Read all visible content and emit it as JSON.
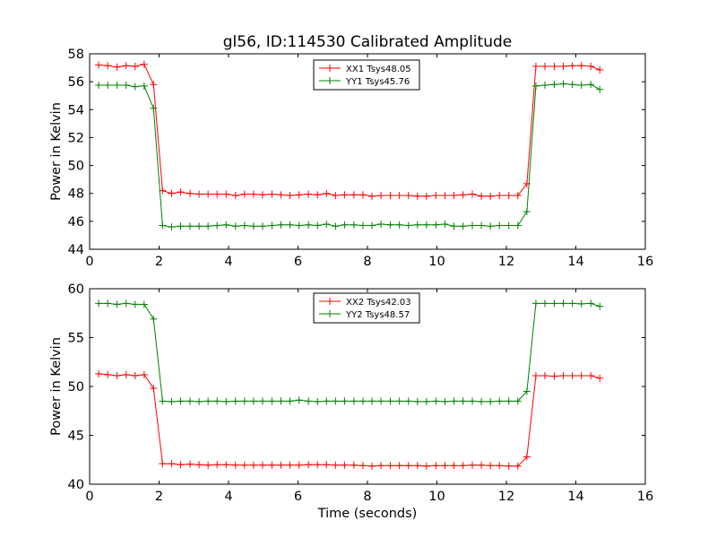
{
  "figure": {
    "title": "gl56, ID:114530 Calibrated Amplitude",
    "xlabel": "Time (seconds)"
  },
  "colors": {
    "red": "#ff0000",
    "green": "#008000"
  },
  "chart_data": [
    {
      "type": "line",
      "ylabel": "Power in Kelvin",
      "xlim": [
        0,
        16
      ],
      "ylim": [
        44,
        58
      ],
      "xticks": [
        0,
        2,
        4,
        6,
        8,
        10,
        12,
        14,
        16
      ],
      "yticks": [
        44,
        46,
        48,
        50,
        52,
        54,
        56,
        58
      ],
      "grid": false,
      "legend_placement": "upper-center",
      "marker": "+",
      "series": [
        {
          "name": "XX1 Tsys48.05",
          "color": "#ff0000",
          "x": [
            0.26,
            0.52,
            0.79,
            1.05,
            1.31,
            1.57,
            1.84,
            2.1,
            2.36,
            2.62,
            2.89,
            3.15,
            3.41,
            3.67,
            3.93,
            4.2,
            4.46,
            4.72,
            4.98,
            5.25,
            5.51,
            5.77,
            6.03,
            6.3,
            6.56,
            6.82,
            7.08,
            7.34,
            7.61,
            7.87,
            8.13,
            8.39,
            8.66,
            8.92,
            9.18,
            9.44,
            9.7,
            9.97,
            10.23,
            10.49,
            10.75,
            11.02,
            11.28,
            11.54,
            11.8,
            12.07,
            12.33,
            12.59,
            12.85,
            13.11,
            13.38,
            13.64,
            13.9,
            14.16,
            14.43,
            14.69
          ],
          "y": [
            57.2,
            57.15,
            57.05,
            57.15,
            57.1,
            57.25,
            55.8,
            48.2,
            48.0,
            48.1,
            48.0,
            47.95,
            47.95,
            47.95,
            47.95,
            47.85,
            47.95,
            47.95,
            47.9,
            47.95,
            47.9,
            47.85,
            47.9,
            47.95,
            47.9,
            48.0,
            47.85,
            47.9,
            47.9,
            47.9,
            47.8,
            47.85,
            47.85,
            47.85,
            47.85,
            47.8,
            47.8,
            47.85,
            47.85,
            47.85,
            47.9,
            47.95,
            47.8,
            47.8,
            47.85,
            47.85,
            47.85,
            48.7,
            57.1,
            57.1,
            57.1,
            57.1,
            57.15,
            57.15,
            57.1,
            56.85
          ]
        },
        {
          "name": "YY1 Tsys45.76",
          "color": "#008000",
          "x": [
            0.26,
            0.52,
            0.79,
            1.05,
            1.31,
            1.57,
            1.84,
            2.1,
            2.36,
            2.62,
            2.89,
            3.15,
            3.41,
            3.67,
            3.93,
            4.2,
            4.46,
            4.72,
            4.98,
            5.25,
            5.51,
            5.77,
            6.03,
            6.3,
            6.56,
            6.82,
            7.08,
            7.34,
            7.61,
            7.87,
            8.13,
            8.39,
            8.66,
            8.92,
            9.18,
            9.44,
            9.7,
            9.97,
            10.23,
            10.49,
            10.75,
            11.02,
            11.28,
            11.54,
            11.8,
            12.07,
            12.33,
            12.59,
            12.85,
            13.11,
            13.38,
            13.64,
            13.9,
            14.16,
            14.43,
            14.69
          ],
          "y": [
            55.75,
            55.75,
            55.75,
            55.75,
            55.65,
            55.7,
            54.1,
            45.7,
            45.6,
            45.65,
            45.65,
            45.65,
            45.65,
            45.7,
            45.75,
            45.65,
            45.7,
            45.65,
            45.65,
            45.7,
            45.75,
            45.75,
            45.7,
            45.75,
            45.7,
            45.8,
            45.65,
            45.75,
            45.75,
            45.7,
            45.7,
            45.8,
            45.75,
            45.75,
            45.7,
            45.75,
            45.75,
            45.75,
            45.8,
            45.65,
            45.65,
            45.7,
            45.7,
            45.65,
            45.7,
            45.7,
            45.7,
            46.7,
            55.7,
            55.75,
            55.8,
            55.85,
            55.8,
            55.75,
            55.8,
            55.45
          ]
        }
      ]
    },
    {
      "type": "line",
      "ylabel": "Power in Kelvin",
      "xlabel": "Time (seconds)",
      "xlim": [
        0,
        16
      ],
      "ylim": [
        40,
        60
      ],
      "xticks": [
        0,
        2,
        4,
        6,
        8,
        10,
        12,
        14,
        16
      ],
      "yticks": [
        40,
        45,
        50,
        55,
        60
      ],
      "grid": false,
      "legend_placement": "upper-center",
      "marker": "+",
      "series": [
        {
          "name": "XX2 Tsys42.03",
          "color": "#ff0000",
          "x": [
            0.26,
            0.52,
            0.79,
            1.05,
            1.31,
            1.57,
            1.84,
            2.1,
            2.36,
            2.62,
            2.89,
            3.15,
            3.41,
            3.67,
            3.93,
            4.2,
            4.46,
            4.72,
            4.98,
            5.25,
            5.51,
            5.77,
            6.03,
            6.3,
            6.56,
            6.82,
            7.08,
            7.34,
            7.61,
            7.87,
            8.13,
            8.39,
            8.66,
            8.92,
            9.18,
            9.44,
            9.7,
            9.97,
            10.23,
            10.49,
            10.75,
            11.02,
            11.28,
            11.54,
            11.8,
            12.07,
            12.33,
            12.59,
            12.85,
            13.11,
            13.38,
            13.64,
            13.9,
            14.16,
            14.43,
            14.69
          ],
          "y": [
            51.3,
            51.2,
            51.1,
            51.2,
            51.1,
            51.2,
            49.8,
            42.1,
            42.1,
            42.0,
            42.05,
            42.0,
            41.95,
            42.0,
            42.0,
            41.95,
            41.95,
            41.95,
            41.95,
            41.95,
            41.95,
            41.95,
            41.95,
            42.0,
            42.0,
            42.0,
            41.95,
            41.95,
            41.95,
            41.9,
            41.85,
            41.9,
            41.9,
            41.9,
            41.9,
            41.9,
            41.85,
            41.9,
            41.9,
            41.9,
            41.9,
            41.95,
            41.95,
            41.9,
            41.9,
            41.85,
            41.85,
            42.8,
            51.1,
            51.1,
            51.05,
            51.1,
            51.1,
            51.1,
            51.1,
            50.85
          ]
        },
        {
          "name": "YY2 Tsys48.57",
          "color": "#008000",
          "x": [
            0.26,
            0.52,
            0.79,
            1.05,
            1.31,
            1.57,
            1.84,
            2.1,
            2.36,
            2.62,
            2.89,
            3.15,
            3.41,
            3.67,
            3.93,
            4.2,
            4.46,
            4.72,
            4.98,
            5.25,
            5.51,
            5.77,
            6.03,
            6.3,
            6.56,
            6.82,
            7.08,
            7.34,
            7.61,
            7.87,
            8.13,
            8.39,
            8.66,
            8.92,
            9.18,
            9.44,
            9.7,
            9.97,
            10.23,
            10.49,
            10.75,
            11.02,
            11.28,
            11.54,
            11.8,
            12.07,
            12.33,
            12.59,
            12.85,
            13.11,
            13.38,
            13.64,
            13.9,
            14.16,
            14.43,
            14.69
          ],
          "y": [
            58.5,
            58.5,
            58.4,
            58.5,
            58.4,
            58.4,
            56.9,
            48.5,
            48.45,
            48.5,
            48.5,
            48.45,
            48.5,
            48.5,
            48.45,
            48.5,
            48.5,
            48.5,
            48.5,
            48.5,
            48.5,
            48.5,
            48.6,
            48.5,
            48.45,
            48.5,
            48.5,
            48.5,
            48.5,
            48.5,
            48.5,
            48.5,
            48.5,
            48.5,
            48.5,
            48.45,
            48.45,
            48.5,
            48.45,
            48.5,
            48.5,
            48.5,
            48.45,
            48.45,
            48.5,
            48.5,
            48.5,
            49.5,
            58.5,
            58.5,
            58.5,
            58.5,
            58.5,
            58.45,
            58.5,
            58.2
          ]
        }
      ]
    }
  ]
}
